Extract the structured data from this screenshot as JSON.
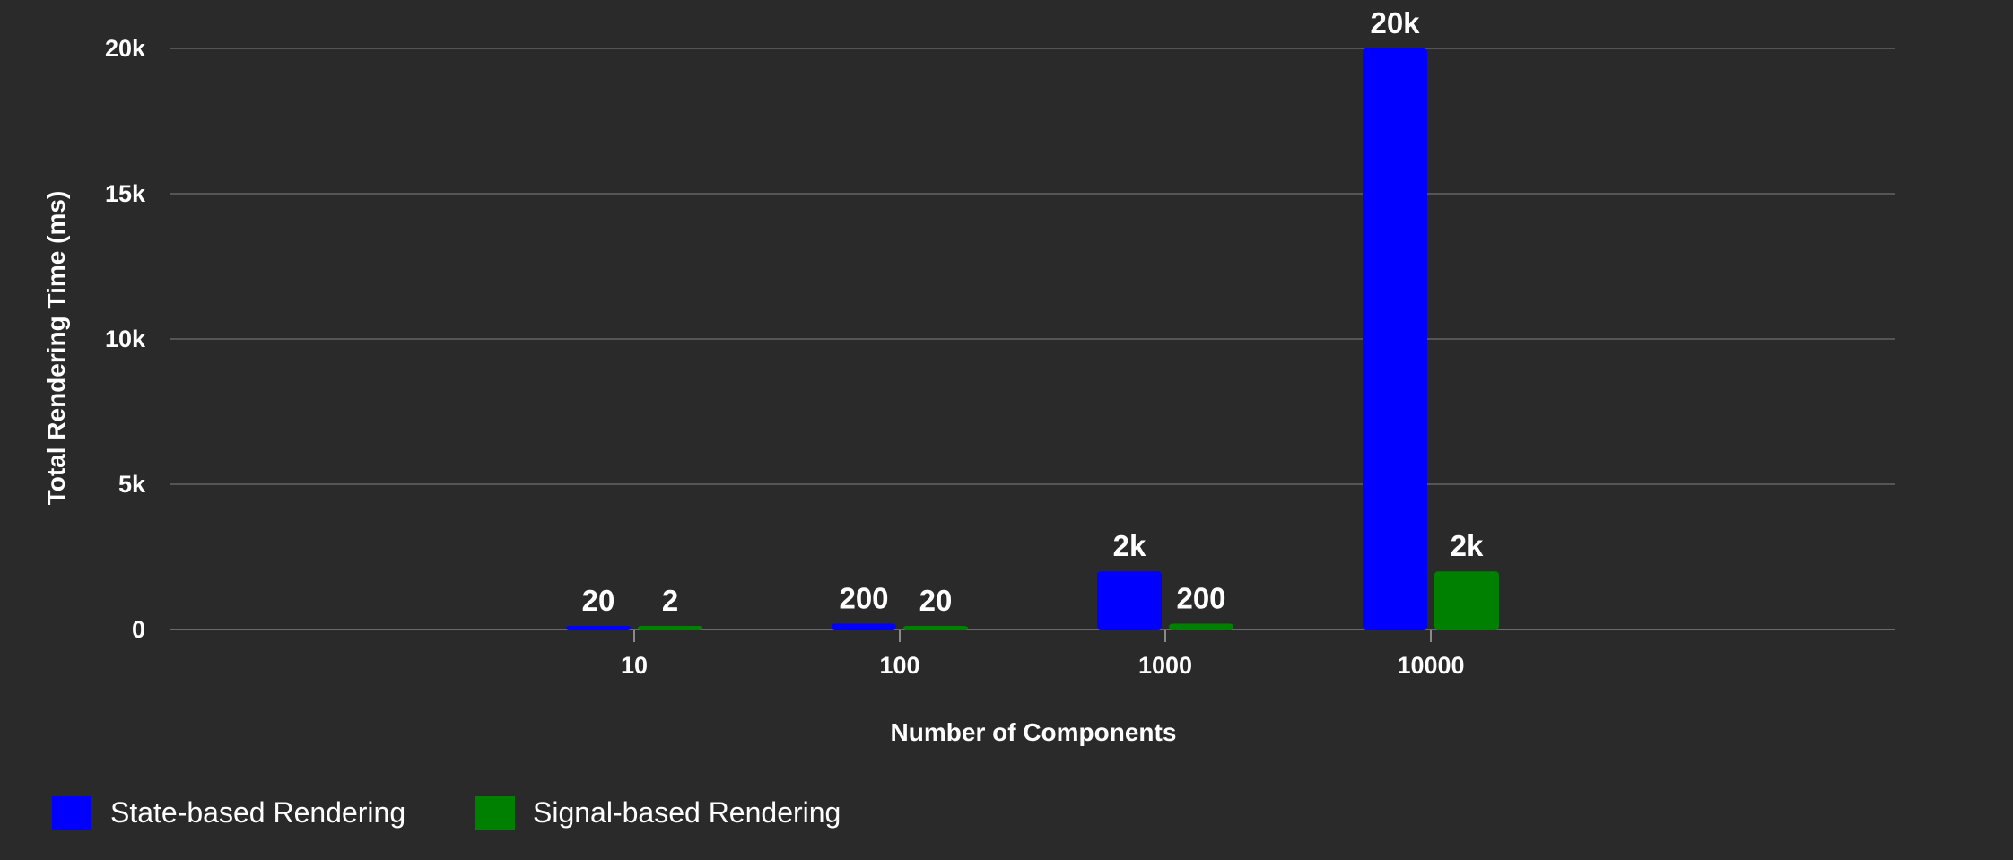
{
  "chart_data": {
    "type": "bar",
    "title": "",
    "xlabel": "Number of Components",
    "ylabel": "Total Rendering Time (ms)",
    "ylim": [
      0,
      20000
    ],
    "yticks": [
      0,
      5000,
      10000,
      15000,
      20000
    ],
    "ytick_labels": [
      "0",
      "5k",
      "10k",
      "15k",
      "20k"
    ],
    "categories": [
      "10",
      "100",
      "1000",
      "10000"
    ],
    "series": [
      {
        "name": "State-based Rendering",
        "color": "#0000ff",
        "values": [
          20,
          200,
          2000,
          20000
        ],
        "labels": [
          "20",
          "200",
          "2k",
          "20k"
        ]
      },
      {
        "name": "Signal-based Rendering",
        "color": "#008000",
        "values": [
          2,
          20,
          200,
          2000
        ],
        "labels": [
          "2",
          "20",
          "200",
          "2k"
        ]
      }
    ],
    "grid": true,
    "legend_position": "bottom-left"
  }
}
